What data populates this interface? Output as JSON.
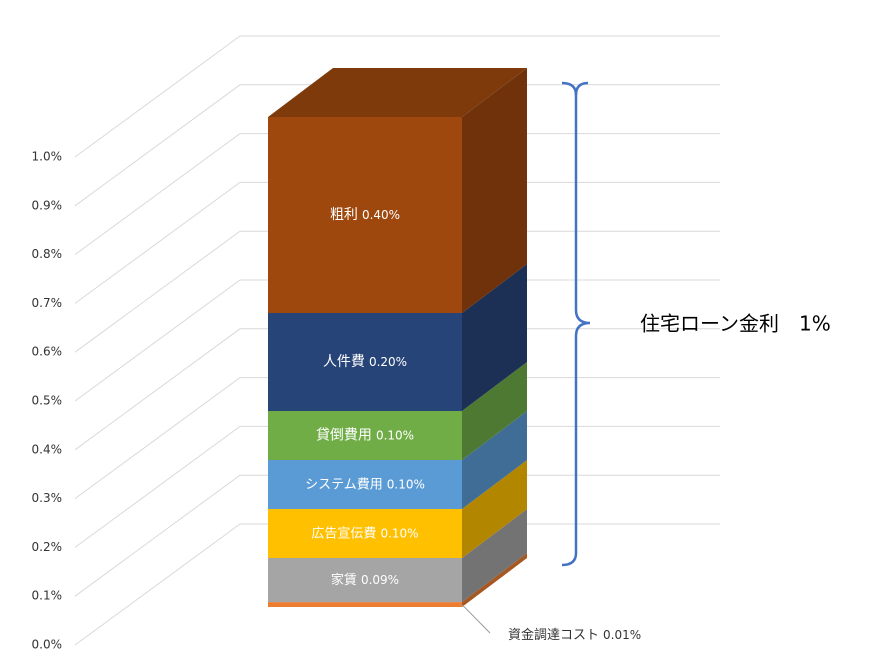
{
  "chart_data": {
    "type": "stacked-bar-3d",
    "categories": [
      null
    ],
    "series": [
      {
        "name": "資金調達コスト",
        "color": "#ed7d31",
        "values": [
          0.01
        ],
        "value_labels": [
          "0.01%"
        ]
      },
      {
        "name": "家賃",
        "color": "#a5a5a5",
        "values": [
          0.09
        ],
        "value_labels": [
          "0.09%"
        ]
      },
      {
        "name": "広告宣伝費",
        "color": "#ffc000",
        "values": [
          0.1
        ],
        "value_labels": [
          "0.10%"
        ]
      },
      {
        "name": "システム費用",
        "color": "#5b9bd5",
        "values": [
          0.1
        ],
        "value_labels": [
          "0.10%"
        ]
      },
      {
        "name": "貸倒費用",
        "color": "#70ad47",
        "values": [
          0.1
        ],
        "value_labels": [
          "0.10%"
        ]
      },
      {
        "name": "人件費",
        "color": "#264478",
        "values": [
          0.2
        ],
        "value_labels": [
          "0.20%"
        ]
      },
      {
        "name": "粗利",
        "color": "#9e480e",
        "values": [
          0.4
        ],
        "value_labels": [
          "0.40%"
        ]
      }
    ],
    "ylim": [
      0,
      1.0
    ],
    "yticks": [
      {
        "value": 0,
        "label": "0.0%"
      },
      {
        "value": 0.1,
        "label": "0.1%"
      },
      {
        "value": 0.2,
        "label": "0.2%"
      },
      {
        "value": 0.3,
        "label": "0.3%"
      },
      {
        "value": 0.4,
        "label": "0.4%"
      },
      {
        "value": 0.5,
        "label": "0.5%"
      },
      {
        "value": 0.6,
        "label": "0.6%"
      },
      {
        "value": 0.7,
        "label": "0.7%"
      },
      {
        "value": 0.8,
        "label": "0.8%"
      },
      {
        "value": 0.9,
        "label": "0.9%"
      },
      {
        "value": 1.0,
        "label": "1.0%"
      }
    ],
    "grid": true,
    "annotation": "住宅ローン金利　1%"
  }
}
